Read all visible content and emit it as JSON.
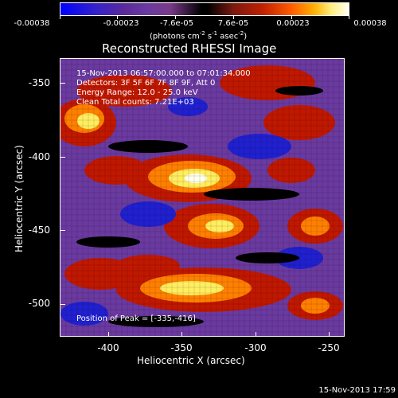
{
  "colorbar": {
    "ticks": [
      "-0.00038",
      "-0.00023",
      "-7.6e-05",
      "7.6e-05",
      "0.00023",
      "0.00038"
    ],
    "units_prefix": "(photons cm",
    "units_exp1": "-2",
    "units_mid": " s",
    "units_exp2": "-1",
    "units_mid2": " asec",
    "units_exp3": "-2",
    "units_suffix": ")"
  },
  "title": "Reconstructed RHESSI Image",
  "info": {
    "time": "15-Nov-2013 06:57:00.000 to 07:01:34.000",
    "detectors": "Detectors: 3F 5F 6F 7F 8F 9F, Att 0",
    "energy": "Energy Range: 12.0 - 25.0 keV",
    "clean": "Clean    Total counts: 7.21E+03"
  },
  "peak": "Position of Peak = [-335,-416]",
  "axes": {
    "xlabel": "Heliocentric X (arcsec)",
    "ylabel": "Heliocentric Y (arcsec)",
    "xticks": [
      "-400",
      "-350",
      "-300",
      "-250"
    ],
    "yticks": [
      "-350",
      "-400",
      "-450",
      "-500"
    ],
    "xlim": [
      -435,
      -242
    ],
    "ylim": [
      -525,
      -336
    ]
  },
  "timestamp": "15-Nov-2013 17:59",
  "colors": {
    "background": "#000000",
    "foreground": "#ffffff",
    "purple": "#6a3aa0",
    "blue": "#2020d0",
    "red": "#c01800",
    "orange": "#ff8000",
    "yellow": "#ffee60",
    "white": "#fffff0"
  }
}
